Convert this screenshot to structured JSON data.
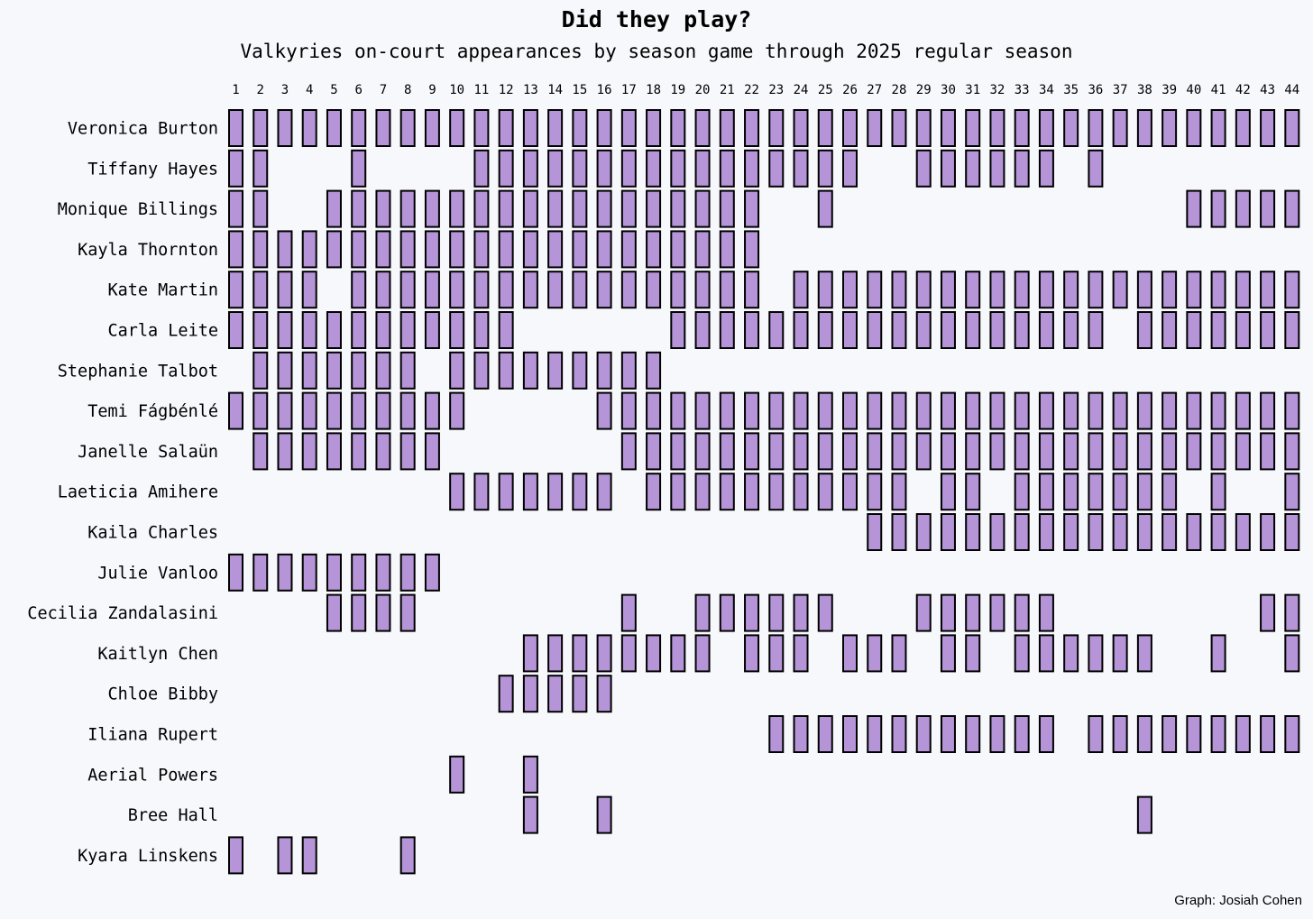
{
  "chart_data": {
    "type": "heatmap",
    "title": "Did they play?",
    "subtitle": "Valkyries on-court appearances by season game through 2025 regular season",
    "caption": "Graph: Josiah Cohen",
    "x_ticks": [
      "1",
      "2",
      "3",
      "4",
      "5",
      "6",
      "7",
      "8",
      "9",
      "10",
      "11",
      "12",
      "13",
      "14",
      "15",
      "16",
      "17",
      "18",
      "19",
      "20",
      "21",
      "22",
      "23",
      "24",
      "25",
      "26",
      "27",
      "28",
      "29",
      "30",
      "31",
      "32",
      "33",
      "34",
      "35",
      "36",
      "37",
      "38",
      "39",
      "40",
      "41",
      "42",
      "43",
      "44"
    ],
    "cell_color": "#b595d8",
    "players": [
      {
        "name": "Veronica Burton",
        "games": [
          1,
          2,
          3,
          4,
          5,
          6,
          7,
          8,
          9,
          10,
          11,
          12,
          13,
          14,
          15,
          16,
          17,
          18,
          19,
          20,
          21,
          22,
          23,
          24,
          25,
          26,
          27,
          28,
          29,
          30,
          31,
          32,
          33,
          34,
          35,
          36,
          37,
          38,
          39,
          40,
          41,
          42,
          43,
          44
        ]
      },
      {
        "name": "Tiffany Hayes",
        "games": [
          1,
          2,
          6,
          11,
          12,
          13,
          14,
          15,
          16,
          17,
          18,
          19,
          20,
          21,
          22,
          23,
          24,
          25,
          26,
          29,
          30,
          31,
          32,
          33,
          34,
          36
        ]
      },
      {
        "name": "Monique Billings",
        "games": [
          1,
          2,
          5,
          6,
          7,
          8,
          9,
          10,
          11,
          12,
          13,
          14,
          15,
          16,
          17,
          18,
          19,
          20,
          21,
          22,
          25,
          40,
          41,
          42,
          43,
          44
        ]
      },
      {
        "name": "Kayla Thornton",
        "games": [
          1,
          2,
          3,
          4,
          5,
          6,
          7,
          8,
          9,
          10,
          11,
          12,
          13,
          14,
          15,
          16,
          17,
          18,
          19,
          20,
          21,
          22
        ]
      },
      {
        "name": "Kate Martin",
        "games": [
          1,
          2,
          3,
          4,
          6,
          7,
          8,
          9,
          10,
          11,
          12,
          13,
          14,
          15,
          16,
          17,
          18,
          19,
          20,
          21,
          22,
          24,
          25,
          26,
          27,
          28,
          29,
          30,
          31,
          32,
          33,
          34,
          35,
          36,
          37,
          38,
          39,
          40,
          41,
          42,
          43,
          44
        ]
      },
      {
        "name": "Carla Leite",
        "games": [
          1,
          2,
          3,
          4,
          5,
          6,
          7,
          8,
          9,
          10,
          11,
          12,
          19,
          20,
          21,
          22,
          23,
          24,
          25,
          26,
          27,
          28,
          29,
          30,
          31,
          32,
          33,
          34,
          35,
          36,
          38,
          39,
          40,
          41,
          42,
          43,
          44
        ]
      },
      {
        "name": "Stephanie Talbot",
        "games": [
          2,
          3,
          4,
          5,
          6,
          7,
          8,
          10,
          11,
          12,
          13,
          14,
          15,
          16,
          17,
          18
        ]
      },
      {
        "name": "Temi Fágbénlé",
        "games": [
          1,
          2,
          3,
          4,
          5,
          6,
          7,
          8,
          9,
          10,
          16,
          17,
          18,
          19,
          20,
          21,
          22,
          23,
          24,
          25,
          26,
          27,
          28,
          29,
          30,
          31,
          32,
          33,
          34,
          35,
          36,
          37,
          38,
          39,
          40,
          41,
          42,
          43,
          44
        ]
      },
      {
        "name": "Janelle Salaün",
        "games": [
          2,
          3,
          4,
          5,
          6,
          7,
          8,
          9,
          17,
          18,
          19,
          20,
          21,
          22,
          23,
          24,
          25,
          26,
          27,
          28,
          29,
          30,
          31,
          32,
          33,
          34,
          35,
          36,
          37,
          38,
          39,
          40,
          41,
          42,
          43,
          44
        ]
      },
      {
        "name": "Laeticia Amihere",
        "games": [
          10,
          11,
          12,
          13,
          14,
          15,
          16,
          18,
          19,
          20,
          21,
          22,
          23,
          24,
          25,
          26,
          27,
          28,
          30,
          31,
          33,
          34,
          35,
          36,
          37,
          38,
          39,
          41,
          44
        ]
      },
      {
        "name": "Kaila Charles",
        "games": [
          27,
          28,
          29,
          30,
          31,
          32,
          33,
          34,
          35,
          36,
          37,
          38,
          39,
          40,
          41,
          42,
          43,
          44
        ]
      },
      {
        "name": "Julie Vanloo",
        "games": [
          1,
          2,
          3,
          4,
          5,
          6,
          7,
          8,
          9
        ]
      },
      {
        "name": "Cecilia Zandalasini",
        "games": [
          5,
          6,
          7,
          8,
          17,
          20,
          21,
          22,
          23,
          24,
          25,
          29,
          30,
          31,
          32,
          33,
          34,
          43,
          44
        ]
      },
      {
        "name": "Kaitlyn Chen",
        "games": [
          13,
          14,
          15,
          16,
          17,
          18,
          19,
          20,
          22,
          23,
          24,
          26,
          27,
          28,
          30,
          31,
          33,
          34,
          35,
          36,
          37,
          38,
          41,
          44
        ]
      },
      {
        "name": "Chloe Bibby",
        "games": [
          12,
          13,
          14,
          15,
          16
        ]
      },
      {
        "name": "Iliana Rupert",
        "games": [
          23,
          24,
          25,
          26,
          27,
          28,
          29,
          30,
          31,
          32,
          33,
          34,
          36,
          37,
          38,
          39,
          40,
          41,
          42,
          43,
          44
        ]
      },
      {
        "name": "Aerial Powers",
        "games": [
          10,
          13
        ]
      },
      {
        "name": "Bree Hall",
        "games": [
          13,
          16,
          38
        ]
      },
      {
        "name": "Kyara Linskens",
        "games": [
          1,
          3,
          4,
          8
        ]
      }
    ]
  }
}
